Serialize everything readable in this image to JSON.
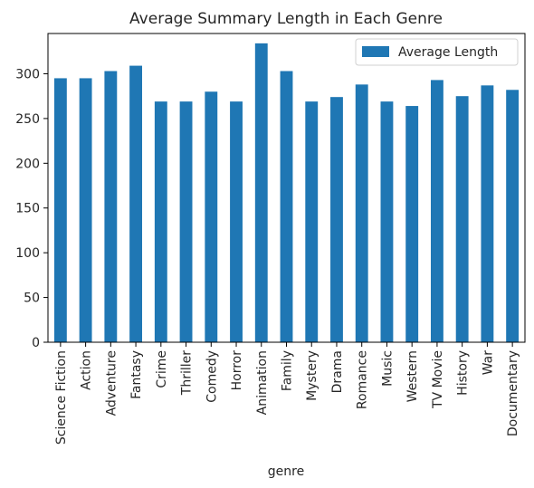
{
  "chart_data": {
    "type": "bar",
    "title": "Average Summary Length in Each Genre",
    "xlabel": "genre",
    "ylabel": "",
    "ylim": [
      0,
      345
    ],
    "yticks": [
      0,
      50,
      100,
      150,
      200,
      250,
      300
    ],
    "grid": false,
    "legend_position": "top-right",
    "categories": [
      "Science Fiction",
      "Action",
      "Adventure",
      "Fantasy",
      "Crime",
      "Thriller",
      "Comedy",
      "Horror",
      "Animation",
      "Family",
      "Mystery",
      "Drama",
      "Romance",
      "Music",
      "Western",
      "TV Movie",
      "History",
      "War",
      "Documentary"
    ],
    "series": [
      {
        "name": "Average Length",
        "color": "#1f77b4",
        "values": [
          295,
          295,
          303,
          309,
          269,
          269,
          280,
          269,
          334,
          303,
          269,
          274,
          288,
          269,
          264,
          293,
          275,
          287,
          282
        ]
      }
    ]
  }
}
